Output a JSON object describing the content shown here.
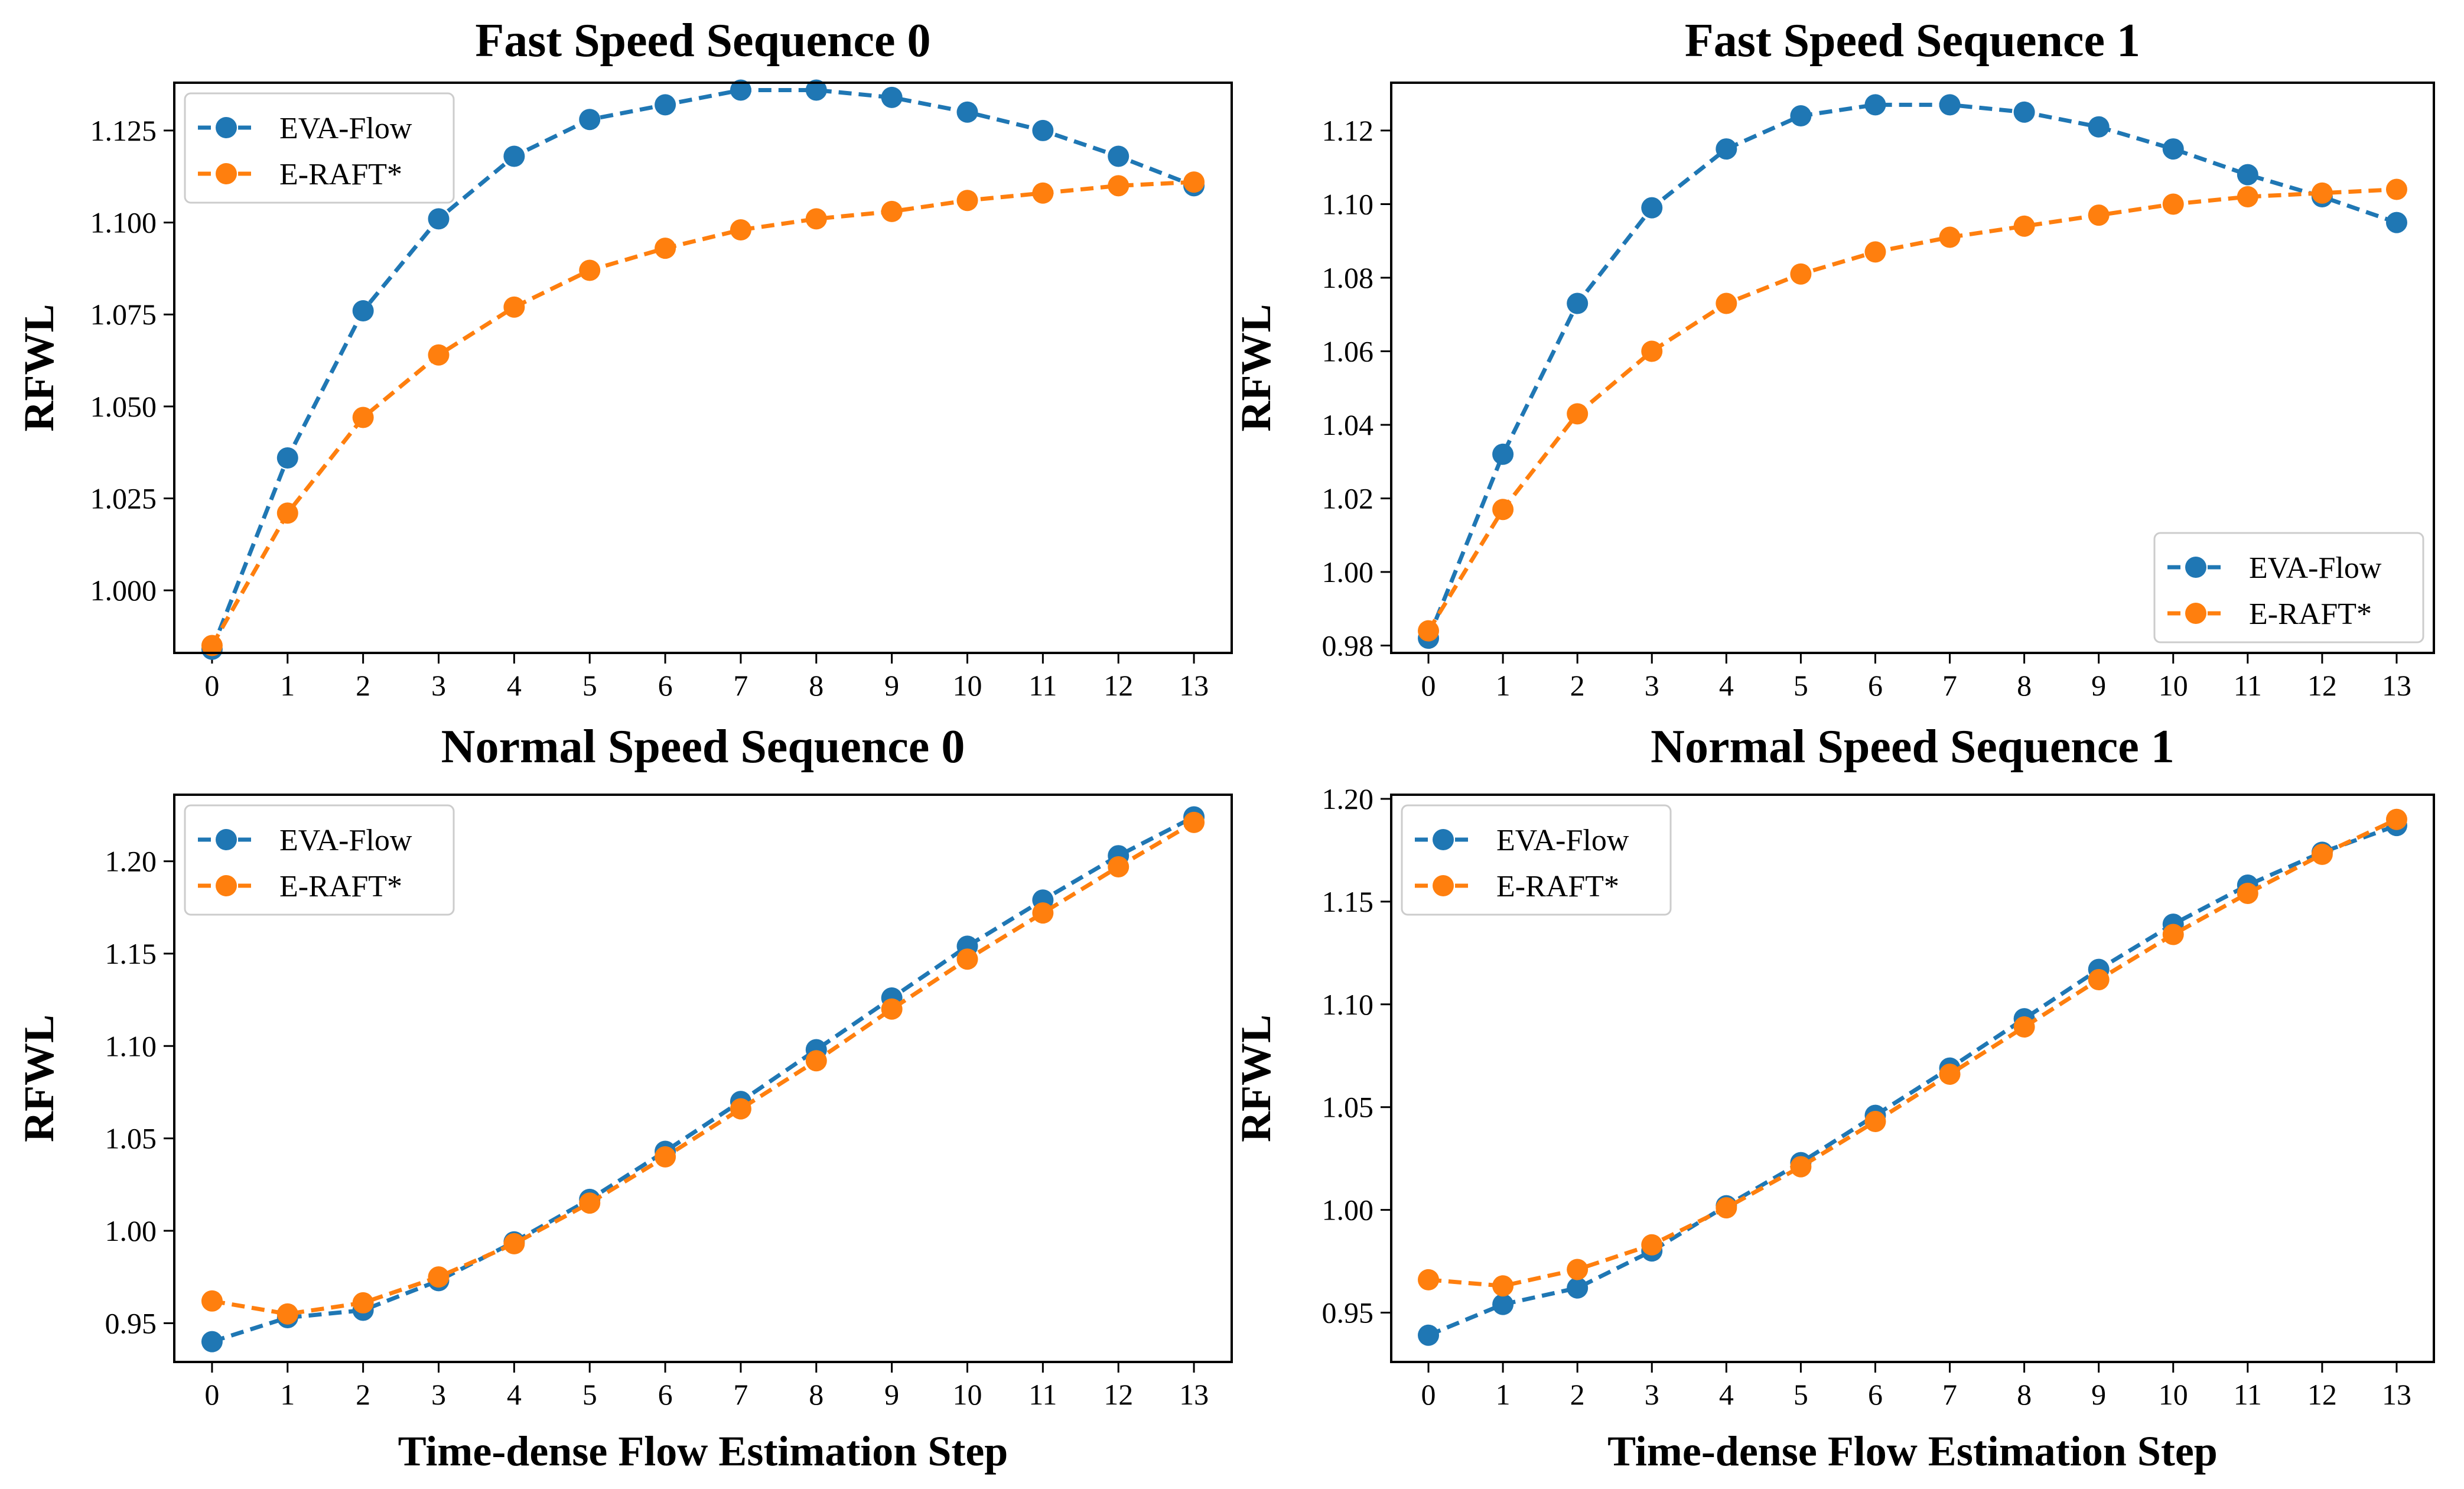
{
  "figure": {
    "xlabel": "Time-dense Flow Estimation Step"
  },
  "colors": {
    "eva": "#1f77b4",
    "eraft": "#ff7f0e"
  },
  "chart_data": [
    {
      "type": "line",
      "title": "Fast Speed Sequence 0",
      "xlabel": "",
      "ylabel": "RFWL",
      "x": [
        0,
        1,
        2,
        3,
        4,
        5,
        6,
        7,
        8,
        9,
        10,
        11,
        12,
        13
      ],
      "ylim": [
        0.983,
        1.138
      ],
      "yticks": [
        1.0,
        1.025,
        1.05,
        1.075,
        1.1,
        1.125
      ],
      "yticklabels": [
        "1.000",
        "1.025",
        "1.050",
        "1.075",
        "1.100",
        "1.125"
      ],
      "legend": "top-left",
      "series": [
        {
          "name": "EVA-Flow",
          "values": [
            0.984,
            1.036,
            1.076,
            1.101,
            1.118,
            1.128,
            1.132,
            1.136,
            1.136,
            1.134,
            1.13,
            1.125,
            1.118,
            1.11
          ]
        },
        {
          "name": "E-RAFT*",
          "values": [
            0.985,
            1.021,
            1.047,
            1.064,
            1.077,
            1.087,
            1.093,
            1.098,
            1.101,
            1.103,
            1.106,
            1.108,
            1.11,
            1.111
          ]
        }
      ]
    },
    {
      "type": "line",
      "title": "Fast Speed Sequence 1",
      "xlabel": "",
      "ylabel": "RFWL",
      "x": [
        0,
        1,
        2,
        3,
        4,
        5,
        6,
        7,
        8,
        9,
        10,
        11,
        12,
        13
      ],
      "ylim": [
        0.978,
        1.133
      ],
      "yticks": [
        0.98,
        1.0,
        1.02,
        1.04,
        1.06,
        1.08,
        1.1,
        1.12
      ],
      "yticklabels": [
        "0.98",
        "1.00",
        "1.02",
        "1.04",
        "1.06",
        "1.08",
        "1.10",
        "1.12"
      ],
      "legend": "lower-right",
      "series": [
        {
          "name": "EVA-Flow",
          "values": [
            0.982,
            1.032,
            1.073,
            1.099,
            1.115,
            1.124,
            1.127,
            1.127,
            1.125,
            1.121,
            1.115,
            1.108,
            1.102,
            1.095
          ]
        },
        {
          "name": "E-RAFT*",
          "values": [
            0.984,
            1.017,
            1.043,
            1.06,
            1.073,
            1.081,
            1.087,
            1.091,
            1.094,
            1.097,
            1.1,
            1.102,
            1.103,
            1.104
          ]
        }
      ]
    },
    {
      "type": "line",
      "title": "Normal Speed Sequence 0",
      "xlabel": "Time-dense Flow Estimation Step",
      "ylabel": "RFWL",
      "x": [
        0,
        1,
        2,
        3,
        4,
        5,
        6,
        7,
        8,
        9,
        10,
        11,
        12,
        13
      ],
      "ylim": [
        0.929,
        1.236
      ],
      "yticks": [
        0.95,
        1.0,
        1.05,
        1.1,
        1.15,
        1.2
      ],
      "yticklabels": [
        "0.95",
        "1.00",
        "1.05",
        "1.10",
        "1.15",
        "1.20"
      ],
      "legend": "top-left",
      "series": [
        {
          "name": "EVA-Flow",
          "values": [
            0.94,
            0.953,
            0.957,
            0.973,
            0.994,
            1.017,
            1.043,
            1.07,
            1.098,
            1.126,
            1.154,
            1.179,
            1.203,
            1.224
          ]
        },
        {
          "name": "E-RAFT*",
          "values": [
            0.962,
            0.955,
            0.961,
            0.975,
            0.993,
            1.015,
            1.04,
            1.066,
            1.092,
            1.12,
            1.147,
            1.172,
            1.197,
            1.221
          ]
        }
      ]
    },
    {
      "type": "line",
      "title": "Normal Speed Sequence 1",
      "xlabel": "Time-dense Flow Estimation Step",
      "ylabel": "RFWL",
      "x": [
        0,
        1,
        2,
        3,
        4,
        5,
        6,
        7,
        8,
        9,
        10,
        11,
        12,
        13
      ],
      "ylim": [
        0.926,
        1.202
      ],
      "yticks": [
        0.95,
        1.0,
        1.05,
        1.1,
        1.15,
        1.2
      ],
      "yticklabels": [
        "0.95",
        "1.00",
        "1.05",
        "1.10",
        "1.15",
        "1.20"
      ],
      "legend": "top-left",
      "series": [
        {
          "name": "EVA-Flow",
          "values": [
            0.939,
            0.954,
            0.962,
            0.98,
            1.002,
            1.023,
            1.046,
            1.069,
            1.093,
            1.117,
            1.139,
            1.158,
            1.174,
            1.187
          ]
        },
        {
          "name": "E-RAFT*",
          "values": [
            0.966,
            0.963,
            0.971,
            0.983,
            1.001,
            1.021,
            1.043,
            1.066,
            1.089,
            1.112,
            1.134,
            1.154,
            1.173,
            1.19
          ]
        }
      ]
    }
  ]
}
